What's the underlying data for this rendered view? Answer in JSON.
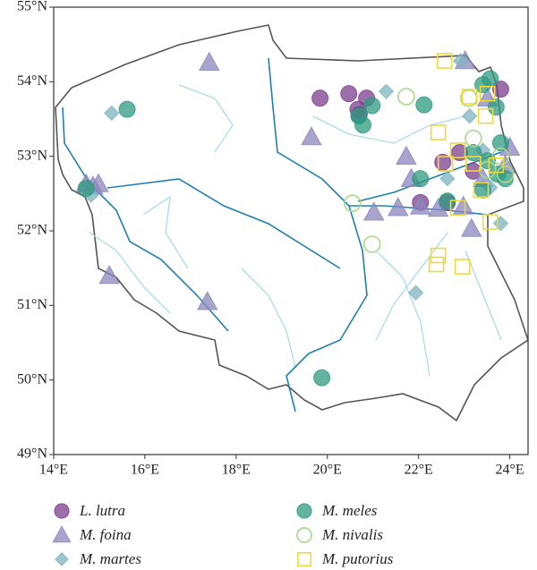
{
  "chart_data": {
    "type": "scatter",
    "xlim": [
      14,
      24.4
    ],
    "ylim": [
      49,
      55
    ],
    "xticks": [
      {
        "value": 14,
        "label": "14°E"
      },
      {
        "value": 16,
        "label": "16°E"
      },
      {
        "value": 18,
        "label": "18°E"
      },
      {
        "value": 20,
        "label": "20°E"
      },
      {
        "value": 22,
        "label": "22°E"
      },
      {
        "value": 24,
        "label": "24°E"
      }
    ],
    "yticks": [
      {
        "value": 49,
        "label": "49°N"
      },
      {
        "value": 50,
        "label": "50°N"
      },
      {
        "value": 51,
        "label": "51°N"
      },
      {
        "value": 52,
        "label": "52°N"
      },
      {
        "value": 53,
        "label": "53°N"
      },
      {
        "value": 54,
        "label": "54°N"
      },
      {
        "value": 55,
        "label": "55°N"
      }
    ],
    "legend": "bottom",
    "series": [
      {
        "name": "L. lutra",
        "color": "#7b3f8f",
        "marker": "circle",
        "filled": true,
        "x": [
          19.84,
          20.47,
          20.86,
          20.67,
          20.7,
          22.04,
          22.53,
          22.63,
          23.2,
          22.9,
          23.8
        ],
        "values": [
          53.78,
          53.84,
          53.78,
          53.63,
          53.56,
          52.38,
          52.92,
          52.38,
          52.8,
          53.05,
          53.9
        ]
      },
      {
        "name": "M. foina",
        "color": "#8a87bd",
        "marker": "triangle",
        "filled": true,
        "x": [
          17.41,
          19.65,
          17.37,
          15.22,
          14.71,
          14.86,
          14.98,
          21.02,
          21.55,
          22.04,
          22.43,
          23.16,
          21.73,
          21.84,
          23.02,
          23.51,
          24.0,
          23.41,
          23.9,
          22.98
        ],
        "values": [
          54.26,
          53.26,
          51.05,
          51.4,
          52.63,
          52.6,
          52.63,
          52.25,
          52.31,
          52.33,
          52.3,
          52.03,
          53.0,
          52.7,
          54.28,
          53.78,
          53.12,
          52.7,
          52.88,
          52.33
        ]
      },
      {
        "name": "M. martes",
        "color": "#7db3c1",
        "marker": "diamond",
        "filled": true,
        "x": [
          15.27,
          14.82,
          21.29,
          22.92,
          23.12,
          22.63,
          21.94,
          23.41,
          23.57,
          23.8
        ],
        "values": [
          53.58,
          52.48,
          53.87,
          54.28,
          53.54,
          52.7,
          51.17,
          53.08,
          52.58,
          52.1
        ]
      },
      {
        "name": "M. meles",
        "color": "#2e9a80",
        "marker": "circle",
        "filled": true,
        "x": [
          15.61,
          14.71,
          20.69,
          20.78,
          20.98,
          22.12,
          22.04,
          22.63,
          23.41,
          23.7,
          23.8,
          23.51,
          23.73,
          23.41,
          23.9,
          19.88,
          23.57,
          23.2
        ],
        "values": [
          53.63,
          52.57,
          53.54,
          53.42,
          53.68,
          53.69,
          52.7,
          52.4,
          53.96,
          53.66,
          53.18,
          52.94,
          52.76,
          52.55,
          52.7,
          50.03,
          54.04,
          53.05
        ]
      },
      {
        "name": "M. nivalis",
        "color": "#a6d98a",
        "marker": "circle",
        "filled": false,
        "x": [
          21.73,
          20.55,
          20.98,
          23.2,
          23.8,
          23.9,
          23.51,
          23.1
        ],
        "values": [
          53.8,
          52.37,
          51.82,
          53.24,
          53.0,
          52.76,
          52.82,
          53.78
        ]
      },
      {
        "name": "M. putorius",
        "color": "#eed83a",
        "marker": "square",
        "filled": false,
        "x": [
          22.57,
          23.12,
          23.51,
          22.43,
          22.86,
          22.59,
          23.2,
          23.7,
          23.37,
          22.86,
          23.57,
          22.43,
          22.39,
          22.96,
          23.47
        ],
        "values": [
          54.28,
          53.8,
          53.84,
          53.32,
          53.08,
          52.9,
          52.9,
          52.88,
          52.55,
          52.31,
          52.12,
          51.67,
          51.55,
          51.52,
          53.54
        ]
      }
    ]
  }
}
